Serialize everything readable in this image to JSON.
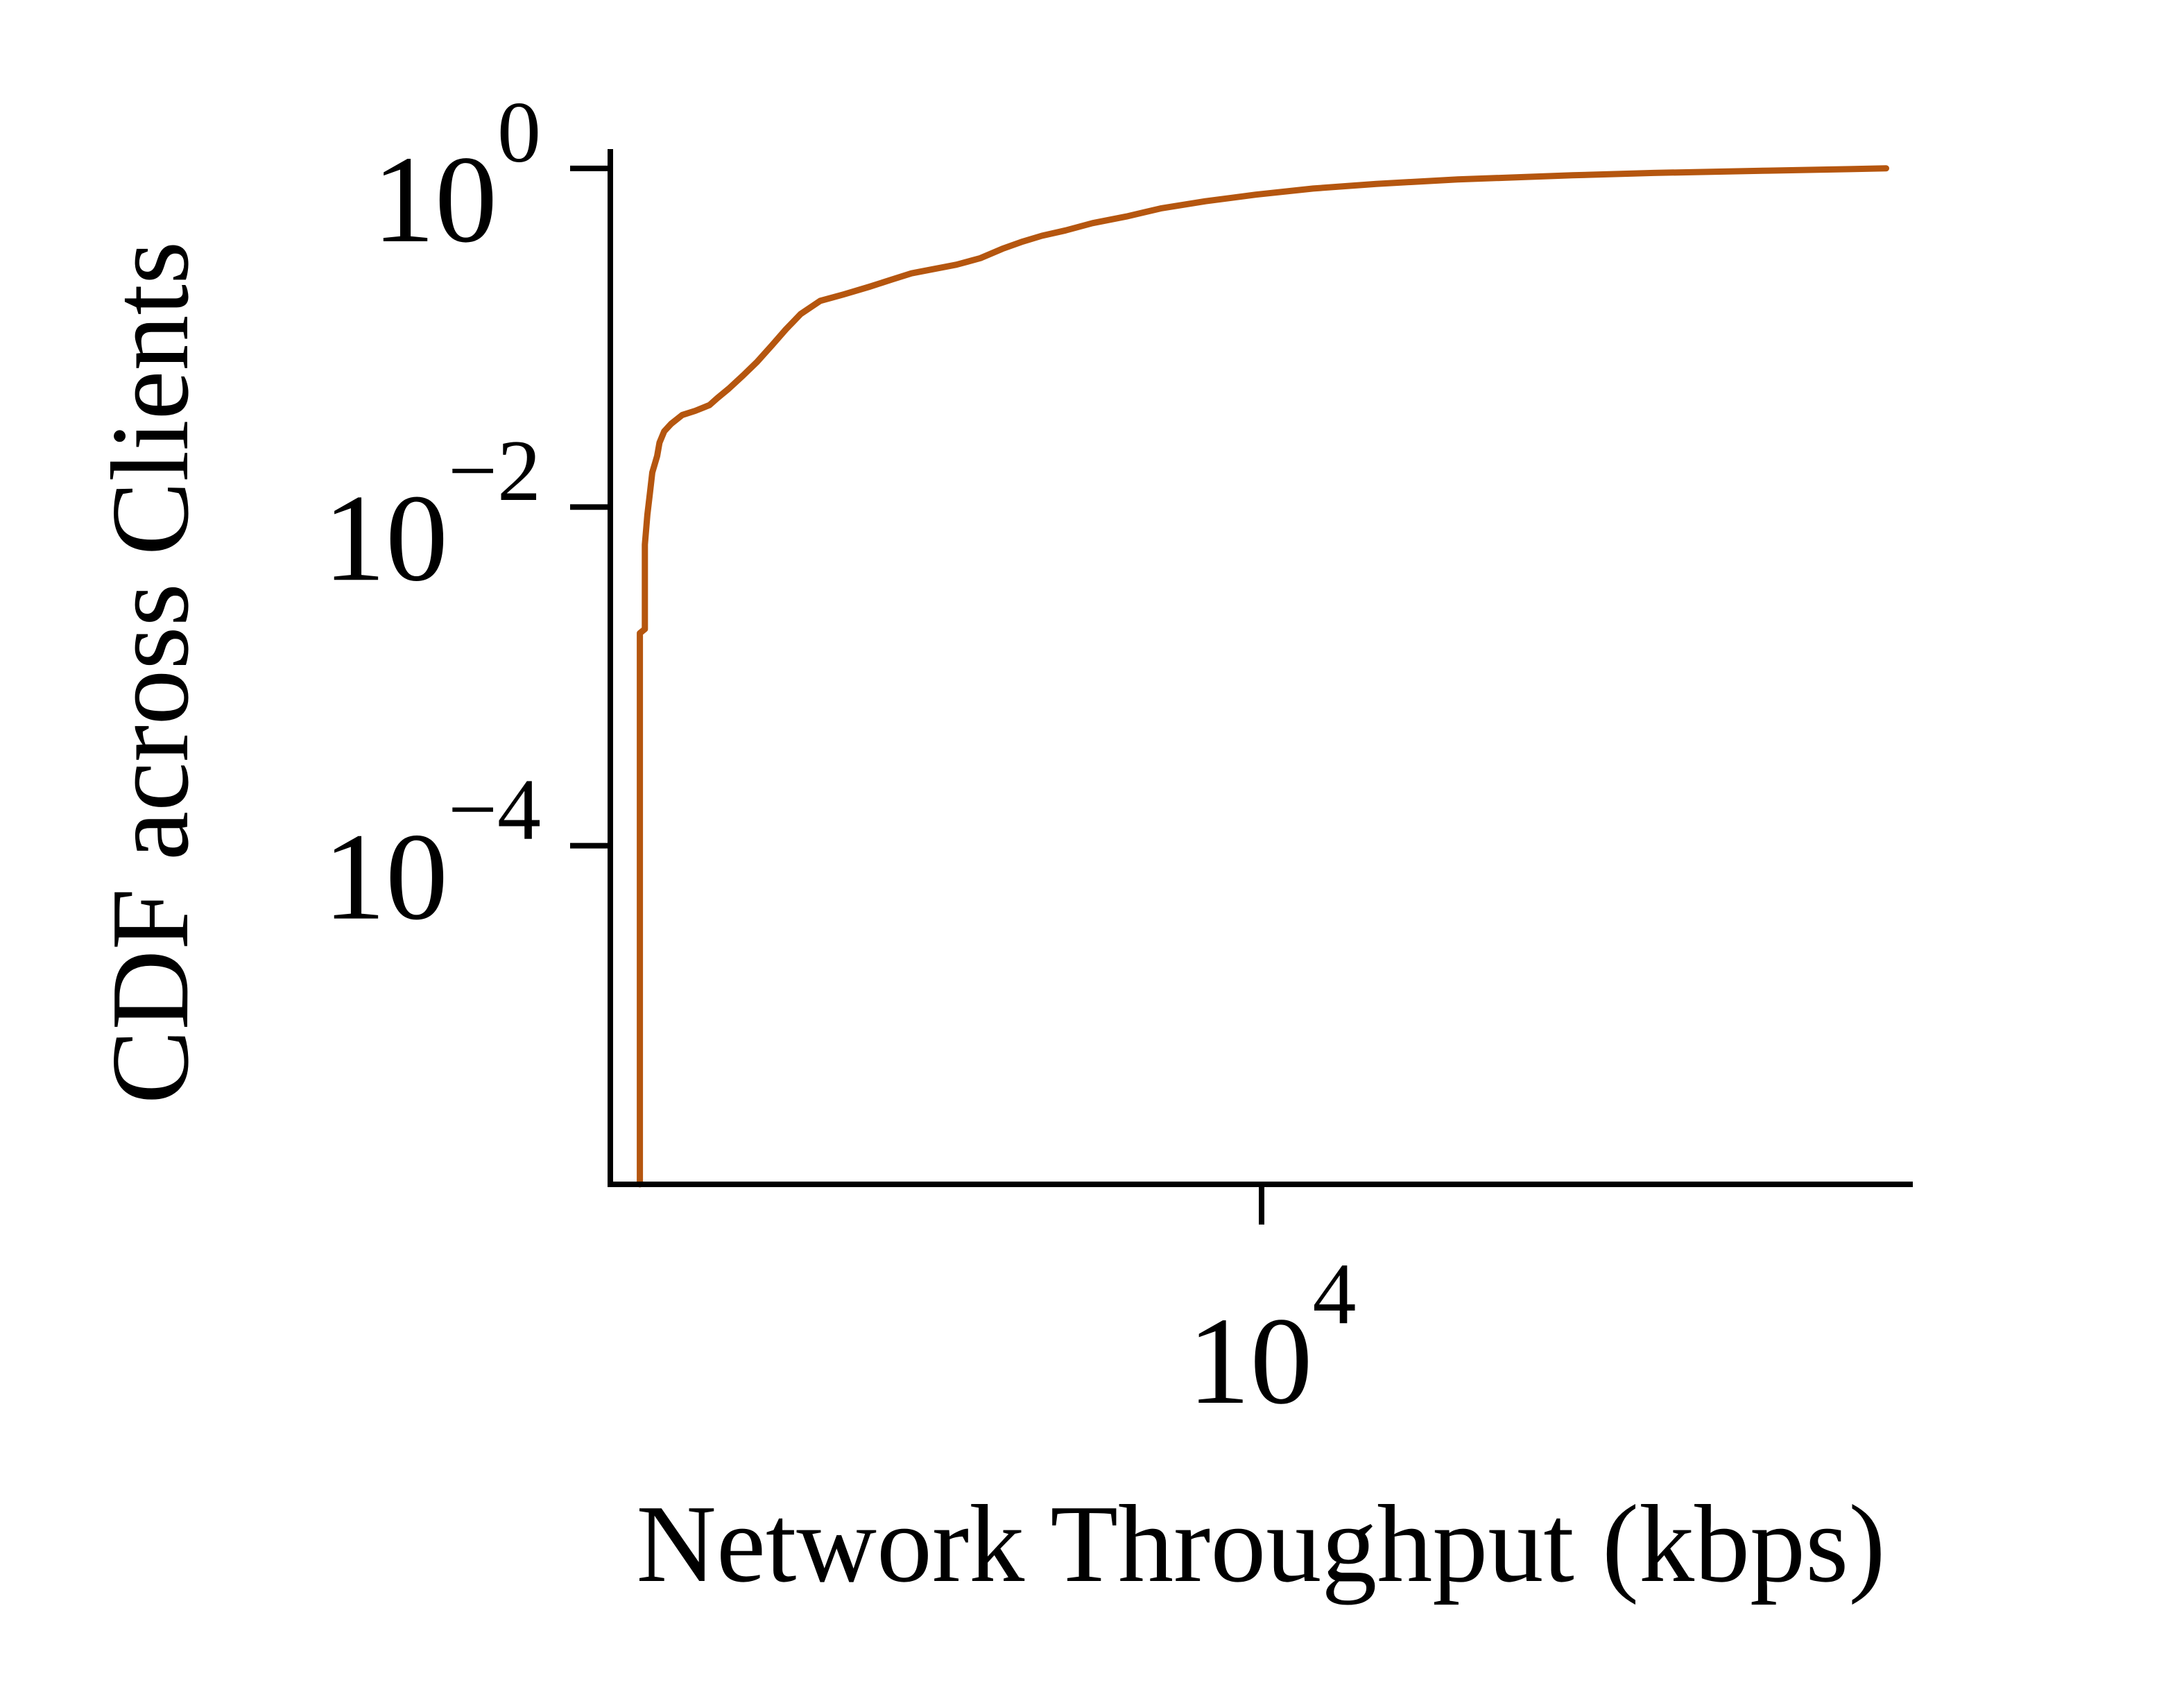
{
  "chart_data": {
    "type": "line",
    "xlabel": "Network Throughput (kbps)",
    "ylabel": "CDF across Clients",
    "xscale": "log",
    "yscale": "log",
    "xlim": [
      1000,
      100000
    ],
    "ylim": [
      1e-06,
      1.3
    ],
    "grid": false,
    "legend": "none",
    "x_ticks": [
      {
        "value": 10000,
        "base": "10",
        "exp": "4"
      }
    ],
    "y_ticks": [
      {
        "value": 0.0001,
        "base": "10",
        "exp": "−4"
      },
      {
        "value": 0.01,
        "base": "10",
        "exp": "−2"
      },
      {
        "value": 1,
        "base": "10",
        "exp": "0"
      }
    ],
    "series": [
      {
        "color": "#b5560f",
        "x": [
          1110,
          1110,
          1130,
          1130,
          1140,
          1150,
          1160,
          1180,
          1190,
          1210,
          1240,
          1290,
          1350,
          1420,
          1460,
          1520,
          1600,
          1680,
          1770,
          1860,
          1960,
          2100,
          2280,
          2500,
          2700,
          2900,
          3150,
          3400,
          3700,
          4000,
          4300,
          4600,
          5000,
          5500,
          6200,
          7000,
          8200,
          9800,
          12000,
          15000,
          20000,
          30000,
          40000,
          60000,
          80000,
          91000
        ],
        "y": [
          1e-06,
          0.0018,
          0.0019,
          0.006,
          0.009,
          0.012,
          0.016,
          0.02,
          0.024,
          0.028,
          0.031,
          0.035,
          0.037,
          0.04,
          0.044,
          0.05,
          0.06,
          0.072,
          0.09,
          0.112,
          0.138,
          0.165,
          0.18,
          0.2,
          0.22,
          0.24,
          0.255,
          0.27,
          0.295,
          0.335,
          0.37,
          0.4,
          0.43,
          0.475,
          0.52,
          0.58,
          0.64,
          0.7,
          0.76,
          0.81,
          0.86,
          0.91,
          0.94,
          0.97,
          0.99,
          1.0
        ]
      }
    ]
  }
}
